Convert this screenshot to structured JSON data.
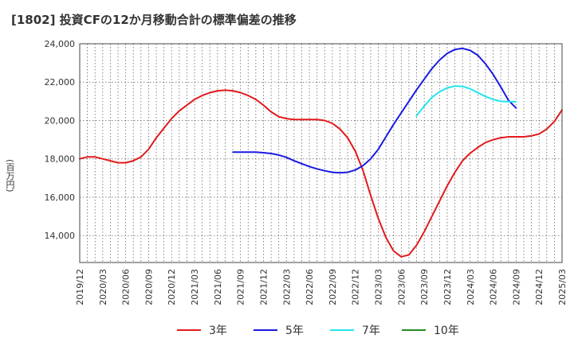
{
  "chart_data": {
    "type": "line",
    "title": "[1802]  投資CFの12か月移動合計の標準偏差の推移",
    "ylabel": "(百万円)",
    "xlabel": "",
    "ylim": [
      12600,
      24000
    ],
    "yticks": [
      14000,
      16000,
      18000,
      20000,
      22000,
      24000
    ],
    "ytick_labels": [
      "14,000",
      "16,000",
      "18,000",
      "20,000",
      "22,000",
      "24,000"
    ],
    "xtick_labels": [
      "2019/12",
      "2020/03",
      "2020/06",
      "2020/09",
      "2020/12",
      "2021/03",
      "2021/06",
      "2021/09",
      "2021/12",
      "2022/03",
      "2022/06",
      "2022/09",
      "2022/12",
      "2023/03",
      "2023/06",
      "2023/09",
      "2023/12",
      "2024/03",
      "2024/06",
      "2024/09",
      "2024/12",
      "2025/03"
    ],
    "grid": true,
    "legend_position": "bottom",
    "series": [
      {
        "name": "3年",
        "color": "#e31a1c",
        "start_month": "2019/12",
        "values": [
          18000,
          18100,
          18100,
          18000,
          17900,
          17800,
          17800,
          17900,
          18100,
          18500,
          19100,
          19600,
          20100,
          20500,
          20800,
          21100,
          21300,
          21450,
          21550,
          21580,
          21550,
          21450,
          21300,
          21100,
          20800,
          20450,
          20200,
          20100,
          20050,
          20050,
          20050,
          20050,
          20000,
          19850,
          19550,
          19100,
          18400,
          17400,
          16100,
          14900,
          13900,
          13200,
          12900,
          13000,
          13500,
          14200,
          15000,
          15800,
          16600,
          17300,
          17900,
          18300,
          18600,
          18850,
          19000,
          19100,
          19150,
          19150,
          19150,
          19200,
          19300,
          19550,
          19950,
          20550
        ]
      },
      {
        "name": "5年",
        "color": "#1a1ae3",
        "start_month": "2021/08",
        "values": [
          18350,
          18350,
          18350,
          18350,
          18320,
          18280,
          18200,
          18080,
          17900,
          17750,
          17600,
          17480,
          17380,
          17300,
          17270,
          17300,
          17420,
          17650,
          18000,
          18500,
          19150,
          19800,
          20400,
          21000,
          21600,
          22150,
          22700,
          23150,
          23500,
          23700,
          23760,
          23650,
          23400,
          22950,
          22400,
          21750,
          21050,
          20650
        ]
      },
      {
        "name": "7年",
        "color": "#22e5f0",
        "start_month": "2023/08",
        "values": [
          20250,
          20750,
          21200,
          21500,
          21700,
          21800,
          21780,
          21650,
          21450,
          21250,
          21100,
          21000,
          20980,
          20980
        ]
      },
      {
        "name": "10年",
        "color": "#238b23",
        "start_month": "2024/09",
        "values": []
      }
    ]
  }
}
